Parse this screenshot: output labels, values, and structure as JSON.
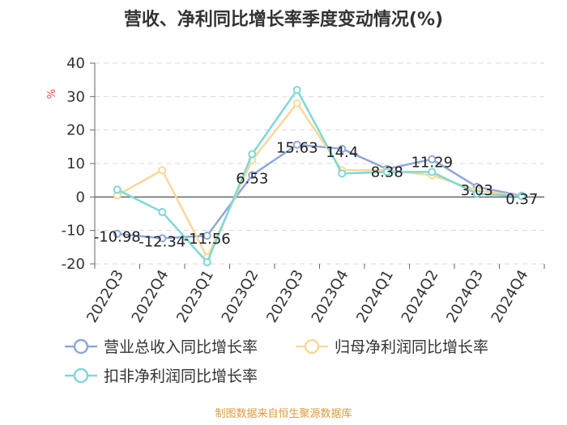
{
  "title": "营收、净利同比增长率季度变动情况(%)",
  "source": "制图数据来自恒生聚源数据库",
  "colors": {
    "revenue": "#8fa8d8",
    "netprofit": "#f8d89a",
    "deducted": "#7fd8d8",
    "axis": "#666666",
    "grid": "#d8d8d8",
    "yunit": "#e05050"
  },
  "chart_data": {
    "type": "line",
    "categories": [
      "2022Q3",
      "2022Q4",
      "2023Q1",
      "2023Q2",
      "2023Q3",
      "2023Q4",
      "2024Q1",
      "2024Q2",
      "2024Q3",
      "2024Q4"
    ],
    "ylabel": "%",
    "ylim": [
      -20,
      40
    ],
    "yticks": [
      -20,
      -10,
      0,
      10,
      20,
      30,
      40
    ],
    "grid": true,
    "legend_position": "bottom",
    "series": [
      {
        "name": "营业总收入同比增长率",
        "values": [
          -10.98,
          -12.34,
          -11.56,
          6.53,
          15.63,
          14.4,
          8.38,
          11.29,
          3.03,
          0.37
        ],
        "labels": [
          "-10.98",
          "-12.34",
          "-11.56",
          "6.53",
          "15.63",
          "14.4",
          "8.38",
          "11.29",
          "3.03",
          "0.37"
        ]
      },
      {
        "name": "归母净利润同比增长率",
        "values": [
          0.5,
          8.0,
          -18.0,
          11.0,
          28.0,
          8.0,
          8.0,
          6.5,
          2.0,
          0.2
        ]
      },
      {
        "name": "扣非净利润同比增长率",
        "values": [
          2.2,
          -4.5,
          -19.5,
          12.8,
          32.0,
          7.0,
          7.5,
          7.5,
          1.0,
          0.2
        ]
      }
    ]
  }
}
